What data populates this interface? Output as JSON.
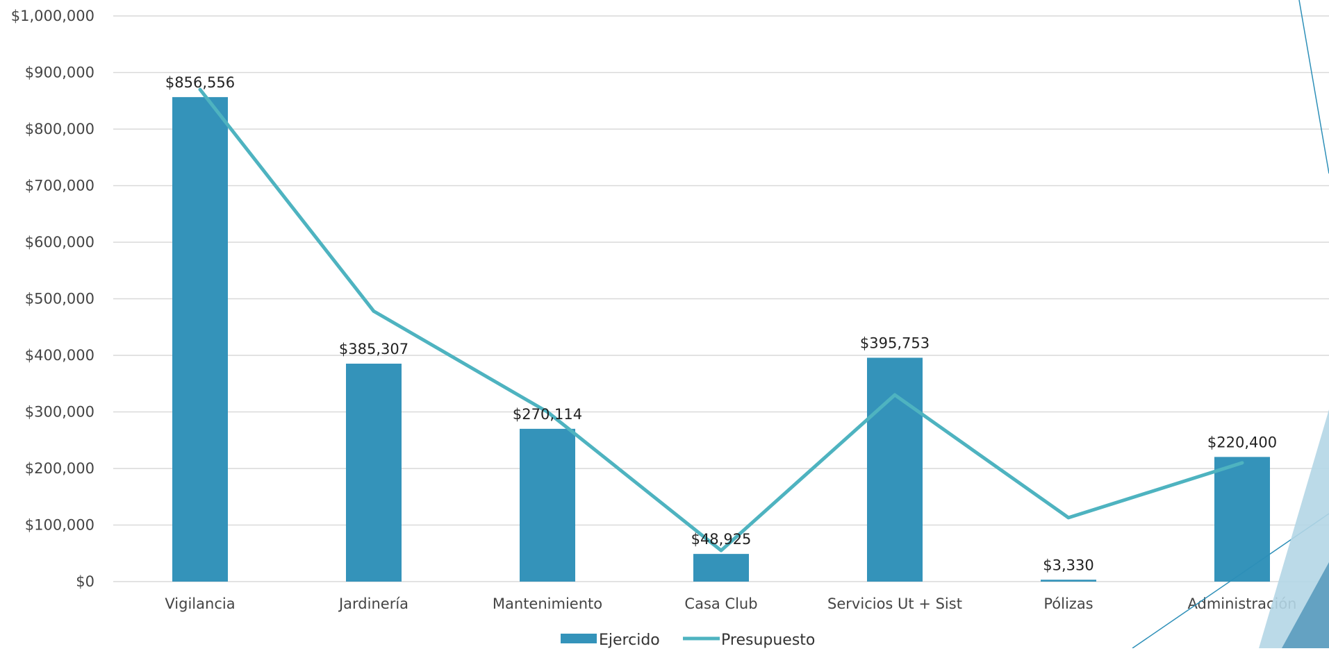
{
  "chart_data": {
    "type": "bar",
    "categories": [
      "Vigilancia",
      "Jardinería",
      "Mantenimiento",
      "Casa Club",
      "Servicios Ut + Sist",
      "Pólizas",
      "Administración"
    ],
    "series": [
      {
        "name": "Ejercido",
        "type": "bar",
        "values": [
          856556,
          385307,
          270114,
          48925,
          395753,
          3330,
          220400
        ],
        "labels": [
          "$856,556",
          "$385,307",
          "$270,114",
          "$48,925",
          "$395,753",
          "$3,330",
          "$220,400"
        ]
      },
      {
        "name": "Presupuesto",
        "type": "line",
        "values": [
          870000,
          478000,
          300000,
          55000,
          330000,
          113000,
          210000
        ]
      }
    ],
    "yticks": [
      "$0",
      "$100,000",
      "$200,000",
      "$300,000",
      "$400,000",
      "$500,000",
      "$600,000",
      "$700,000",
      "$800,000",
      "$900,000",
      "$1,000,000"
    ],
    "ylim": [
      0,
      1000000
    ],
    "grid": true,
    "legend": "bottom-center",
    "title": "",
    "xlabel": "",
    "ylabel": ""
  },
  "colors": {
    "bar": "#3493ba",
    "line": "#4eb3c0",
    "grid": "#d9d9d9",
    "decor_light": "#b4d6e6",
    "decor_mid": "#5f9fc0",
    "decor_line": "#2d8fb8"
  }
}
